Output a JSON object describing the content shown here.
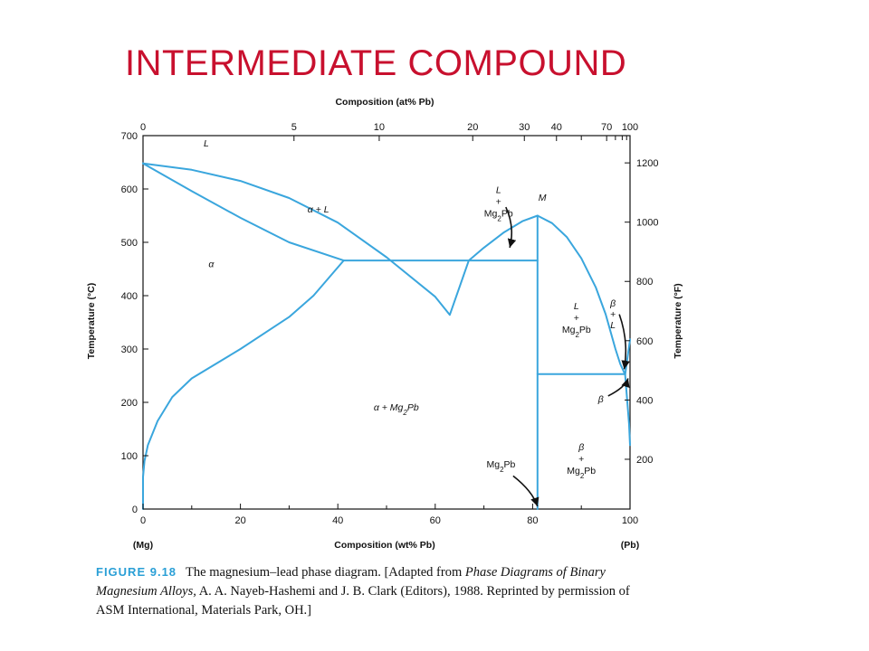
{
  "slide": {
    "title": "INTERMEDIATE COMPOUND"
  },
  "chart_data": {
    "type": "line",
    "title": "",
    "xlabel": "Composition (wt% Pb)",
    "xlabel_top": "Composition (at% Pb)",
    "ylabel": "Temperature (°C)",
    "ylabel_right": "Temperature (°F)",
    "xlim": [
      0,
      100
    ],
    "ylim": [
      0,
      700
    ],
    "x_ticks": [
      "0",
      "20",
      "40",
      "60",
      "80",
      "100"
    ],
    "x_end_labels": {
      "left": "(Mg)",
      "right": "(Pb)"
    },
    "y_ticks": [
      "0",
      "100",
      "200",
      "300",
      "400",
      "500",
      "600",
      "700"
    ],
    "top_ticks": [
      {
        "label": "0",
        "wt": 0
      },
      {
        "label": "5",
        "wt": 31
      },
      {
        "label": "10",
        "wt": 48.5
      },
      {
        "label": "20",
        "wt": 67.7
      },
      {
        "label": "30",
        "wt": 78.3
      },
      {
        "label": "40",
        "wt": 84.9
      },
      {
        "label": "70",
        "wt": 95.2
      },
      {
        "label": "100",
        "wt": 100
      }
    ],
    "top_minor_ticks_wt": [
      90.0,
      97.0,
      98.4,
      99.3
    ],
    "right_ticks": [
      {
        "label": "200",
        "degC": 93.3
      },
      {
        "label": "400",
        "degC": 204.4
      },
      {
        "label": "600",
        "degC": 315.6
      },
      {
        "label": "800",
        "degC": 426.7
      },
      {
        "label": "1000",
        "degC": 537.8
      },
      {
        "label": "1200",
        "degC": 648.9
      }
    ],
    "series": [
      {
        "points": [
          [
            0,
            648
          ],
          [
            10,
            636
          ],
          [
            20,
            615
          ],
          [
            30,
            583
          ],
          [
            40,
            537
          ],
          [
            50,
            472
          ],
          [
            60,
            398
          ],
          [
            63,
            364
          ],
          [
            66.9,
            466
          ]
        ]
      },
      {
        "points": [
          [
            0,
            648
          ],
          [
            10,
            596
          ],
          [
            20,
            546
          ],
          [
            30,
            500
          ],
          [
            41.2,
            466
          ]
        ]
      },
      {
        "points": [
          [
            0,
            0
          ],
          [
            0,
            60
          ],
          [
            0.3,
            90
          ],
          [
            1,
            120
          ],
          [
            3,
            165
          ],
          [
            6,
            210
          ],
          [
            10,
            245
          ],
          [
            20,
            300
          ],
          [
            30,
            360
          ],
          [
            35,
            400
          ],
          [
            41.2,
            466
          ]
        ]
      },
      {
        "points": [
          [
            41.2,
            466
          ],
          [
            81,
            466
          ]
        ]
      },
      {
        "points": [
          [
            66.9,
            466
          ],
          [
            70,
            490
          ],
          [
            74,
            518
          ],
          [
            78,
            540
          ],
          [
            81,
            550
          ]
        ]
      },
      {
        "points": [
          [
            81,
            550
          ],
          [
            81,
            0
          ]
        ]
      },
      {
        "points": [
          [
            81,
            550
          ],
          [
            84,
            536
          ],
          [
            87,
            510
          ],
          [
            90,
            470
          ],
          [
            93,
            415
          ],
          [
            95,
            365
          ],
          [
            97,
            300
          ],
          [
            98,
            272
          ],
          [
            99,
            252
          ]
        ]
      },
      {
        "points": [
          [
            81,
            253
          ],
          [
            99,
            253
          ]
        ]
      },
      {
        "points": [
          [
            99,
            252
          ],
          [
            100,
            318
          ]
        ]
      },
      {
        "points": [
          [
            99,
            252
          ],
          [
            99.8,
            160
          ],
          [
            100,
            120
          ]
        ]
      },
      {
        "points": [
          [
            0,
            60
          ],
          [
            0,
            20
          ]
        ]
      }
    ],
    "annotations": [
      {
        "text": "L",
        "x": 13,
        "y": 680
      },
      {
        "text": "α + L",
        "x": 36,
        "y": 556
      },
      {
        "text": "α",
        "x": 14,
        "y": 453
      },
      {
        "text": "α + Mg2Pb",
        "x": 52,
        "y": 185
      },
      {
        "text": "L + Mg2Pb",
        "x": 73,
        "y": 592
      },
      {
        "text": "M",
        "x": 82,
        "y": 578
      },
      {
        "text": "L + Mg2Pb",
        "x": 89,
        "y": 375
      },
      {
        "text": "β + L",
        "x": 96.5,
        "y": 380
      },
      {
        "text": "β",
        "x": 94,
        "y": 200
      },
      {
        "text": "β + Mg2Pb",
        "x": 90,
        "y": 110
      },
      {
        "text": "Mg2Pb",
        "x": 73.5,
        "y": 78
      }
    ]
  },
  "caption": {
    "figure_label": "FIGURE 9.18",
    "text_1": "The magnesium–lead phase diagram. [Adapted from ",
    "text_italic_1": "Phase Diagrams of Binary Magnesium Alloys,",
    "text_2": " A. A. Nayeb-Hashemi and J. B. Clark (Editors), 1988. Reprinted by permission of ASM International, Materials Park, OH.]"
  },
  "colors": {
    "title": "#c8102e",
    "curve": "#3aa6dd",
    "axis": "#111111",
    "figure_label": "#2a9fd6"
  }
}
